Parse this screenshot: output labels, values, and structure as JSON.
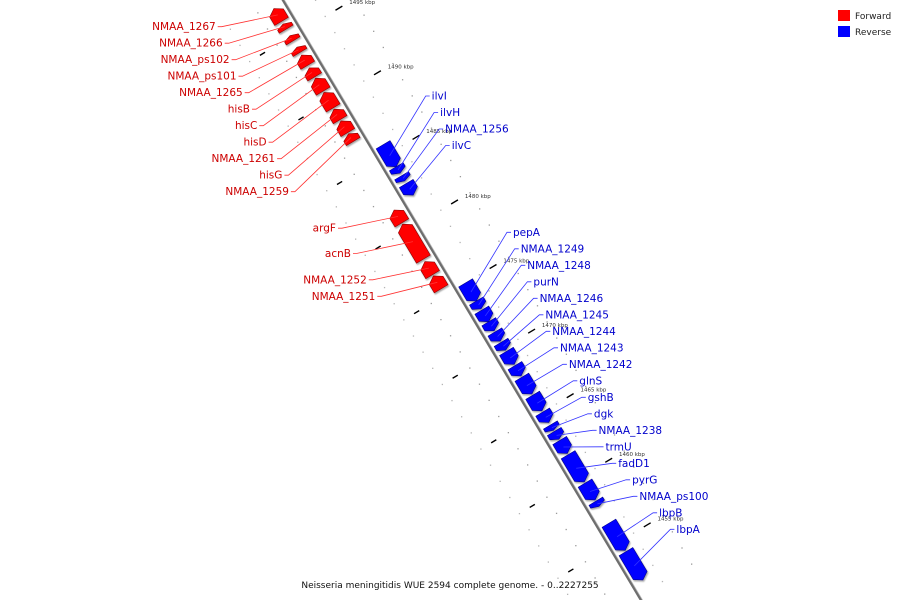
{
  "legend": {
    "forward": {
      "label": "Forward",
      "color": "#ff0000"
    },
    "reverse": {
      "label": "Reverse",
      "color": "#0000ff"
    }
  },
  "caption": "Neisseria meningitidis WUE 2594 complete genome. - 0..2227255",
  "axis": {
    "unit": "kbp",
    "ticks": [
      {
        "value": 1495,
        "label": "1495 kbp"
      },
      {
        "value": 1490,
        "label": "1490 kbp"
      },
      {
        "value": 1485,
        "label": "1485 kbp"
      },
      {
        "value": 1480,
        "label": "1480 kbp"
      },
      {
        "value": 1475,
        "label": "1475 kbp"
      },
      {
        "value": 1470,
        "label": "1470 kbp"
      },
      {
        "value": 1465,
        "label": "1465 kbp"
      },
      {
        "value": 1460,
        "label": "1460 kbp"
      },
      {
        "value": 1455,
        "label": "1455 kbp"
      }
    ]
  },
  "genes": {
    "forward": [
      {
        "name": "NMAA_1267",
        "start": 1497.2,
        "end": 1496.2
      },
      {
        "name": "NMAA_1266",
        "start": 1496.0,
        "end": 1495.6
      },
      {
        "name": "NMAA_ps102",
        "start": 1495.1,
        "end": 1494.7
      },
      {
        "name": "NMAA_ps101",
        "start": 1494.2,
        "end": 1493.8
      },
      {
        "name": "NMAA_1265",
        "start": 1493.6,
        "end": 1492.8
      },
      {
        "name": "hisB",
        "start": 1492.6,
        "end": 1491.9
      },
      {
        "name": "hisC",
        "start": 1491.8,
        "end": 1490.8
      },
      {
        "name": "hisD",
        "start": 1490.7,
        "end": 1489.5
      },
      {
        "name": "NMAA_1261",
        "start": 1489.4,
        "end": 1488.6
      },
      {
        "name": "hisG",
        "start": 1488.5,
        "end": 1487.6
      },
      {
        "name": "NMAA_1259",
        "start": 1487.5,
        "end": 1486.9
      },
      {
        "name": "argF",
        "start": 1481.6,
        "end": 1480.6
      },
      {
        "name": "acnB",
        "start": 1480.5,
        "end": 1477.8
      },
      {
        "name": "NMAA_1252",
        "start": 1477.6,
        "end": 1476.6
      },
      {
        "name": "NMAA_1251",
        "start": 1476.5,
        "end": 1475.5
      }
    ],
    "reverse": [
      {
        "name": "ilvI",
        "start": 1485.7,
        "end": 1484.0
      },
      {
        "name": "ilvH",
        "start": 1484.0,
        "end": 1483.5
      },
      {
        "name": "NMAA_1256",
        "start": 1483.3,
        "end": 1482.9
      },
      {
        "name": "ilvC",
        "start": 1482.7,
        "end": 1481.8
      },
      {
        "name": "pepA",
        "start": 1475.0,
        "end": 1473.6
      },
      {
        "name": "NMAA_1249",
        "start": 1473.6,
        "end": 1473.0
      },
      {
        "name": "NMAA_1248",
        "start": 1472.9,
        "end": 1472.0
      },
      {
        "name": "purN",
        "start": 1472.0,
        "end": 1471.3
      },
      {
        "name": "NMAA_1246",
        "start": 1471.2,
        "end": 1470.5
      },
      {
        "name": "NMAA_1245",
        "start": 1470.4,
        "end": 1469.8
      },
      {
        "name": "NMAA_1244",
        "start": 1469.7,
        "end": 1468.7
      },
      {
        "name": "NMAA_1243",
        "start": 1468.6,
        "end": 1467.8
      },
      {
        "name": "NMAA_1242",
        "start": 1467.7,
        "end": 1466.4
      },
      {
        "name": "glnS",
        "start": 1466.3,
        "end": 1465.1
      },
      {
        "name": "gshB",
        "start": 1465.0,
        "end": 1464.2
      },
      {
        "name": "dgk",
        "start": 1464.0,
        "end": 1463.6
      },
      {
        "name": "NMAA_1238",
        "start": 1463.5,
        "end": 1462.9
      },
      {
        "name": "trmU",
        "start": 1462.8,
        "end": 1461.8
      },
      {
        "name": "fadD1",
        "start": 1461.7,
        "end": 1459.6
      },
      {
        "name": "pyrG",
        "start": 1459.5,
        "end": 1458.2
      },
      {
        "name": "NMAA_ps100",
        "start": 1458.1,
        "end": 1457.7
      },
      {
        "name": "lbpB",
        "start": 1456.4,
        "end": 1454.3
      },
      {
        "name": "lbpA",
        "start": 1454.2,
        "end": 1452.0
      }
    ]
  }
}
